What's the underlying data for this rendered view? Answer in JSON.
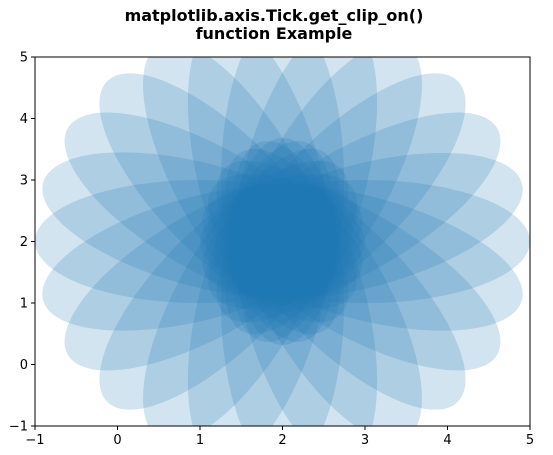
{
  "chart_data": {
    "type": "scatter",
    "title_lines": [
      "matplotlib.axis.Tick.get_clip_on()",
      "function Example"
    ],
    "xlabel": "",
    "ylabel": "",
    "xlim": [
      -1,
      5
    ],
    "ylim": [
      -1,
      5
    ],
    "xticks": [
      "−1",
      "0",
      "1",
      "2",
      "3",
      "4",
      "5"
    ],
    "yticks": [
      "−1",
      "0",
      "1",
      "2",
      "3",
      "4",
      "5"
    ],
    "grid": false,
    "color": "#1f77b4",
    "ellipse_alpha": 0.2,
    "ellipses": [
      {
        "cx": 3.0,
        "cy": 2.0,
        "width": 4.0,
        "height": 2.0,
        "angle_deg": 0
      },
      {
        "cx": 2.97,
        "cy": 2.25,
        "width": 4.0,
        "height": 2.0,
        "angle_deg": 15
      },
      {
        "cx": 2.87,
        "cy": 2.5,
        "width": 4.0,
        "height": 2.0,
        "angle_deg": 30
      },
      {
        "cx": 2.71,
        "cy": 2.71,
        "width": 4.0,
        "height": 2.0,
        "angle_deg": 45
      },
      {
        "cx": 2.5,
        "cy": 2.87,
        "width": 4.0,
        "height": 2.0,
        "angle_deg": 60
      },
      {
        "cx": 2.26,
        "cy": 2.97,
        "width": 4.0,
        "height": 2.0,
        "angle_deg": 75
      },
      {
        "cx": 2.0,
        "cy": 3.0,
        "width": 4.0,
        "height": 2.0,
        "angle_deg": 90
      },
      {
        "cx": 1.74,
        "cy": 2.97,
        "width": 4.0,
        "height": 2.0,
        "angle_deg": 105
      },
      {
        "cx": 1.5,
        "cy": 2.87,
        "width": 4.0,
        "height": 2.0,
        "angle_deg": 120
      },
      {
        "cx": 1.29,
        "cy": 2.71,
        "width": 4.0,
        "height": 2.0,
        "angle_deg": 135
      },
      {
        "cx": 1.13,
        "cy": 2.5,
        "width": 4.0,
        "height": 2.0,
        "angle_deg": 150
      },
      {
        "cx": 1.03,
        "cy": 2.26,
        "width": 4.0,
        "height": 2.0,
        "angle_deg": 165
      },
      {
        "cx": 1.0,
        "cy": 2.0,
        "width": 4.0,
        "height": 2.0,
        "angle_deg": 180
      },
      {
        "cx": 1.03,
        "cy": 1.74,
        "width": 4.0,
        "height": 2.0,
        "angle_deg": 195
      },
      {
        "cx": 1.13,
        "cy": 1.5,
        "width": 4.0,
        "height": 2.0,
        "angle_deg": 210
      },
      {
        "cx": 1.29,
        "cy": 1.29,
        "width": 4.0,
        "height": 2.0,
        "angle_deg": 225
      },
      {
        "cx": 1.5,
        "cy": 1.13,
        "width": 4.0,
        "height": 2.0,
        "angle_deg": 240
      },
      {
        "cx": 1.74,
        "cy": 1.03,
        "width": 4.0,
        "height": 2.0,
        "angle_deg": 255
      },
      {
        "cx": 2.0,
        "cy": 1.0,
        "width": 4.0,
        "height": 2.0,
        "angle_deg": 270
      },
      {
        "cx": 2.26,
        "cy": 1.03,
        "width": 4.0,
        "height": 2.0,
        "angle_deg": 285
      },
      {
        "cx": 2.5,
        "cy": 1.13,
        "width": 4.0,
        "height": 2.0,
        "angle_deg": 300
      },
      {
        "cx": 2.71,
        "cy": 1.29,
        "width": 4.0,
        "height": 2.0,
        "angle_deg": 315
      },
      {
        "cx": 2.87,
        "cy": 1.5,
        "width": 4.0,
        "height": 2.0,
        "angle_deg": 330
      },
      {
        "cx": 2.97,
        "cy": 1.74,
        "width": 4.0,
        "height": 2.0,
        "angle_deg": 345
      }
    ]
  }
}
